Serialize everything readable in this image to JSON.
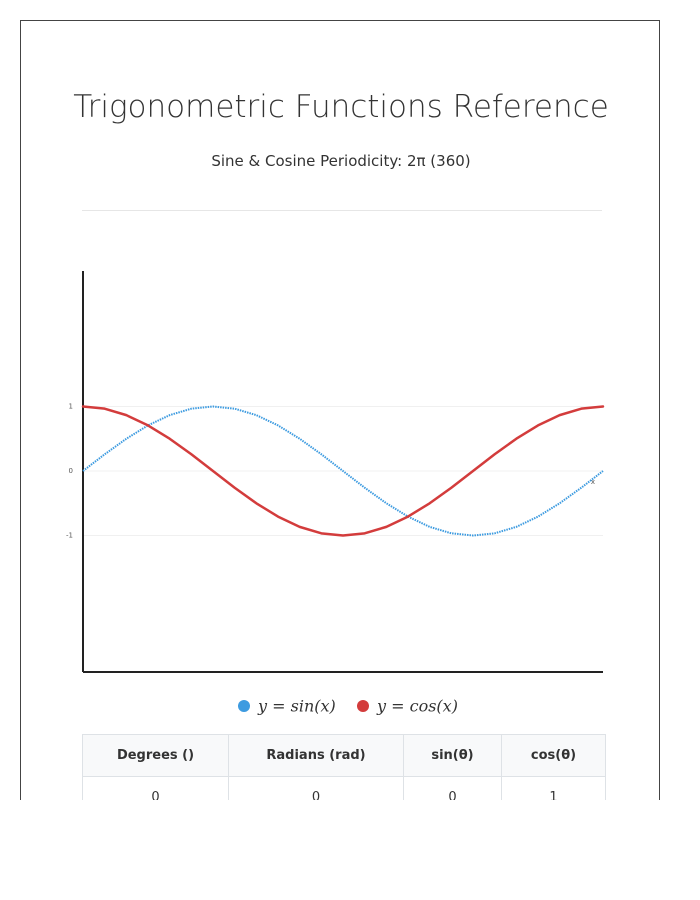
{
  "chart_data": {
    "type": "line",
    "title": "Trigonometric Functions Reference",
    "subtitle": "Sine & Cosine Periodicity: 2π (360)",
    "x": [
      0,
      15,
      30,
      45,
      60,
      75,
      90,
      105,
      120,
      135,
      150,
      165,
      180,
      195,
      210,
      225,
      240,
      255,
      270,
      285,
      300,
      315,
      330,
      345,
      360
    ],
    "series": [
      {
        "name": "y = sin(x)",
        "color": "#3d9be0",
        "dashed": true,
        "values": [
          0,
          0.259,
          0.5,
          0.707,
          0.866,
          0.966,
          1,
          0.966,
          0.866,
          0.707,
          0.5,
          0.259,
          0,
          -0.259,
          -0.5,
          -0.707,
          -0.866,
          -0.966,
          -1,
          -0.966,
          -0.866,
          -0.707,
          -0.5,
          -0.259,
          0
        ]
      },
      {
        "name": "y = cos(x)",
        "color": "#d33c3c",
        "dashed": false,
        "values": [
          1,
          0.966,
          0.866,
          0.707,
          0.5,
          0.259,
          0,
          -0.259,
          -0.5,
          -0.707,
          -0.866,
          -0.966,
          -1,
          -0.966,
          -0.866,
          -0.707,
          -0.5,
          -0.259,
          0,
          0.259,
          0.5,
          0.707,
          0.866,
          0.966,
          1
        ]
      }
    ],
    "xlabel": "x",
    "xlim": [
      0,
      360
    ],
    "ylim": [
      -3.1,
      3.1
    ],
    "yticks": [
      -1,
      0,
      1
    ],
    "grid": true
  },
  "table": {
    "columns": [
      "Degrees ()",
      "Radians (rad)",
      "sin(θ)",
      "cos(θ)"
    ],
    "rows": [
      [
        0,
        0,
        0,
        1
      ]
    ]
  }
}
